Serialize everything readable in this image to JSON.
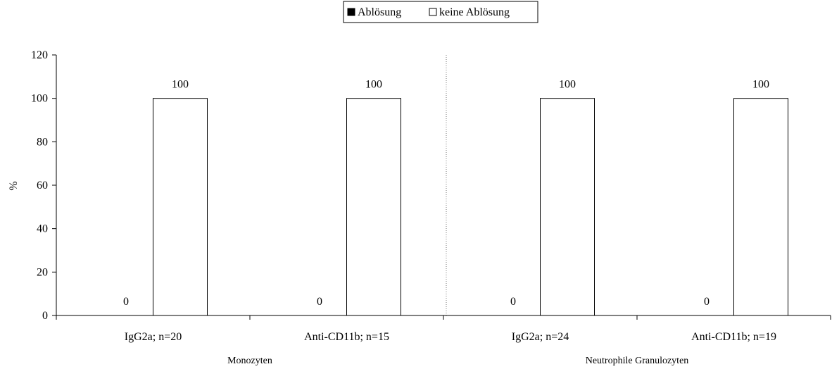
{
  "chart_data": {
    "type": "bar",
    "title": "",
    "xlabel": "",
    "ylabel": "%",
    "ylim": [
      0,
      120
    ],
    "yticks": [
      0,
      20,
      40,
      60,
      80,
      100,
      120
    ],
    "grid": false,
    "legend_position": "top",
    "categories": [
      "IgG2a; n=20",
      "Anti-CD11b; n=15",
      "IgG2a; n=24",
      "Anti-CD11b; n=19"
    ],
    "groups": [
      {
        "label": "Monozyten",
        "categories": [
          "IgG2a; n=20",
          "Anti-CD11b; n=15"
        ]
      },
      {
        "label": "Neutrophile Granulozyten",
        "categories": [
          "IgG2a; n=24",
          "Anti-CD11b; n=19"
        ]
      }
    ],
    "series": [
      {
        "name": "Ablösung",
        "color": "#000000",
        "values": [
          0,
          0,
          0,
          0
        ]
      },
      {
        "name": "keine Ablösung",
        "color": "#ffffff",
        "values": [
          100,
          100,
          100,
          100
        ]
      }
    ]
  }
}
